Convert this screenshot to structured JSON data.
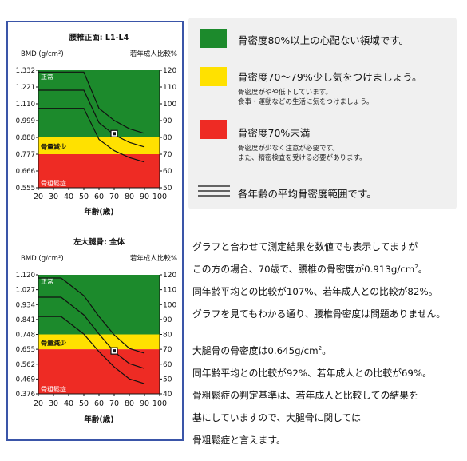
{
  "colors": {
    "green": "#1c8a2c",
    "yellow": "#ffe100",
    "red": "#ee2b24",
    "border": "#3a55a8"
  },
  "legend": {
    "items": [
      {
        "label": "骨密度80%以上の心配ない領域です。",
        "sub": [],
        "color": "#1c8a2c"
      },
      {
        "label": "骨密度70～79%少し気をつけましょう。",
        "sub": [
          "骨密度がやや低下しています。",
          "食事・運動などの生活に気をつけましょう。"
        ],
        "color": "#ffe100"
      },
      {
        "label": "骨密度70%未満",
        "sub": [
          "骨密度が少なく注意が必要です。",
          "また、精密検査を受ける必要があります。"
        ],
        "color": "#ee2b24"
      }
    ],
    "line_label": "各年齢の平均骨密度範囲です。"
  },
  "description": {
    "para1": [
      "グラフと合わせて測定結果を数値でも表示してますが",
      "この方の場合、70歳で、腰椎の骨密度が0.913g/cm",
      "同年齢平均との比較が107%、若年成人との比較が82%。",
      "グラフを見てもわかる通り、腰椎骨密度は問題ありません。"
    ],
    "para1_sup": "2",
    "para1_end": "。",
    "para2_line0": "大腿骨の骨密度は0.645g/cm",
    "para2_sup": "2",
    "para2_end": "。",
    "para2": [
      "同年齢平均との比較が92%、若年成人との比較が69%。",
      "骨粗鬆症の判定基準は、若年成人と比較しての結果を",
      "基にしていますので、大腿骨に関しては",
      "骨粗鬆症と言えます。"
    ]
  },
  "chart_data": [
    {
      "type": "area",
      "title": "腰椎正面: L1-L4",
      "ylabel": "BMD (g/cm²)",
      "y2label": "若年成人比較%",
      "xlabel": "年齢(歳)",
      "x_ticks": [
        20,
        30,
        40,
        50,
        60,
        70,
        80,
        90,
        100
      ],
      "y_ticks": [
        "1.332",
        "1.221",
        "1.110",
        "0.999",
        "0.888",
        "0.777",
        "0.666",
        "0.555"
      ],
      "y2_ticks": [
        "120",
        "110",
        "100",
        "90",
        "80",
        "70",
        "60",
        "50"
      ],
      "ylim": [
        0.555,
        1.332
      ],
      "zones": [
        {
          "label": "正常",
          "from": 0.888,
          "to": 1.332,
          "color": "green"
        },
        {
          "label": "骨量減少",
          "from": 0.777,
          "to": 0.888,
          "color": "yellow"
        },
        {
          "label": "骨粗鬆症",
          "from": 0.555,
          "to": 0.777,
          "color": "red"
        }
      ],
      "series": [
        {
          "x": [
            20,
            50,
            60,
            70,
            80,
            90
          ],
          "values": [
            1.32,
            1.32,
            1.08,
            1.0,
            0.945,
            0.915
          ]
        },
        {
          "x": [
            20,
            50,
            60,
            70,
            80,
            90
          ],
          "values": [
            1.2,
            1.2,
            0.985,
            0.905,
            0.855,
            0.825
          ]
        },
        {
          "x": [
            20,
            50,
            60,
            70,
            80,
            90
          ],
          "values": [
            1.08,
            1.08,
            0.875,
            0.8,
            0.755,
            0.725
          ]
        }
      ],
      "marker": {
        "x": 70,
        "y": 0.913
      }
    },
    {
      "type": "area",
      "title": "左大腿骨: 全体",
      "ylabel": "BMD (g/cm²)",
      "y2label": "若年成人比較%",
      "xlabel": "年齢(歳)",
      "x_ticks": [
        20,
        30,
        40,
        50,
        60,
        70,
        80,
        90,
        100
      ],
      "y_ticks": [
        "1.120",
        "1.027",
        "0.934",
        "0.841",
        "0.748",
        "0.655",
        "0.562",
        "0.469",
        "0.376"
      ],
      "y2_ticks": [
        "120",
        "110",
        "100",
        "90",
        "80",
        "70",
        "60",
        "50",
        "40"
      ],
      "ylim": [
        0.376,
        1.12
      ],
      "zones": [
        {
          "label": "正常",
          "from": 0.748,
          "to": 1.12,
          "color": "green"
        },
        {
          "label": "骨量減少",
          "from": 0.655,
          "to": 0.748,
          "color": "yellow"
        },
        {
          "label": "骨粗鬆症",
          "from": 0.376,
          "to": 0.655,
          "color": "red"
        }
      ],
      "series": [
        {
          "x": [
            20,
            35,
            50,
            60,
            70,
            80,
            90
          ],
          "values": [
            1.1,
            1.1,
            0.99,
            0.86,
            0.745,
            0.66,
            0.63
          ]
        },
        {
          "x": [
            20,
            35,
            50,
            60,
            70,
            80,
            90
          ],
          "values": [
            0.98,
            0.98,
            0.87,
            0.75,
            0.64,
            0.565,
            0.535
          ]
        },
        {
          "x": [
            20,
            35,
            50,
            60,
            70,
            80,
            90
          ],
          "values": [
            0.86,
            0.86,
            0.75,
            0.64,
            0.545,
            0.47,
            0.44
          ]
        }
      ],
      "marker": {
        "x": 70,
        "y": 0.645
      }
    }
  ]
}
